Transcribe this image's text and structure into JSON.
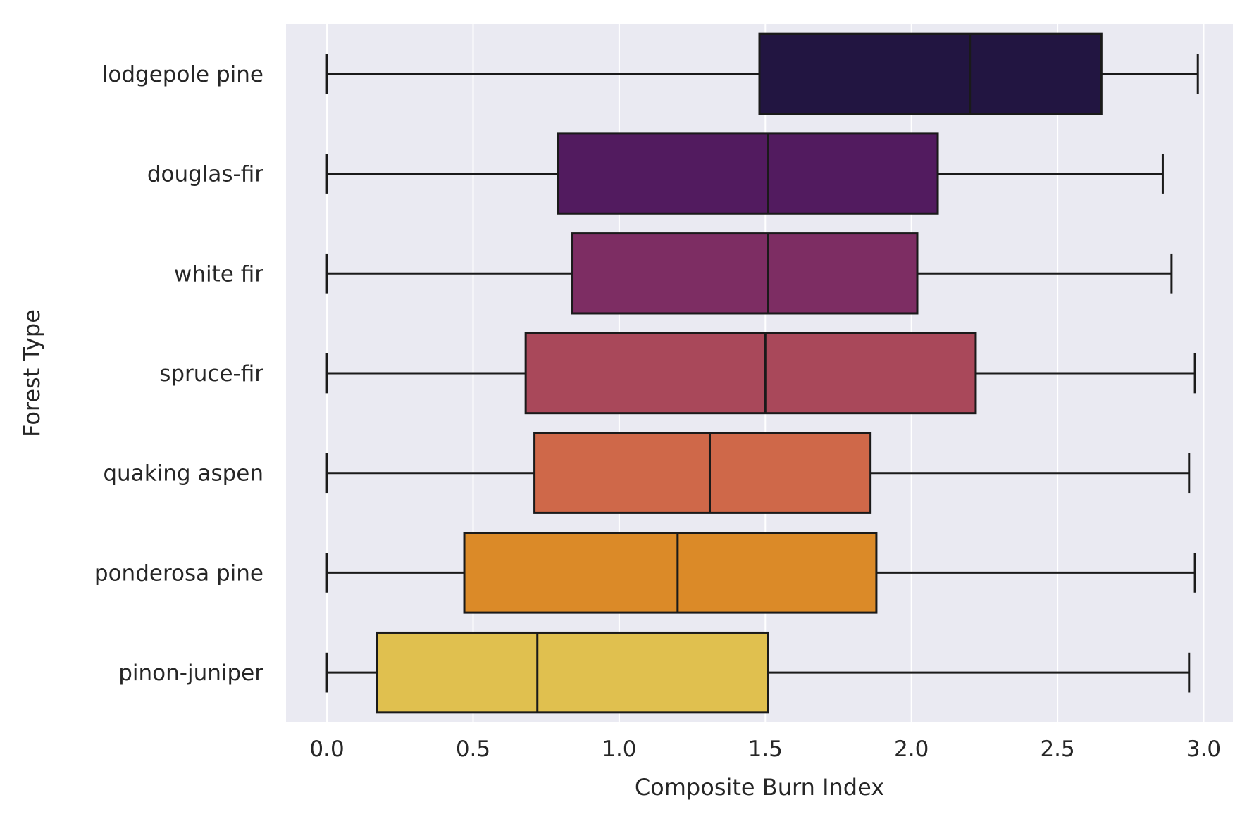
{
  "chart_data": {
    "type": "boxplot",
    "orientation": "horizontal",
    "xlabel": "Composite Burn Index",
    "ylabel": "Forest Type",
    "xlim": [
      -0.14,
      3.1
    ],
    "xticks": [
      0.0,
      0.5,
      1.0,
      1.5,
      2.0,
      2.5,
      3.0
    ],
    "xtick_labels": [
      "0.0",
      "0.5",
      "1.0",
      "1.5",
      "2.0",
      "2.5",
      "3.0"
    ],
    "grid": true,
    "background": "#eaeaf2",
    "categories": [
      "lodgepole pine",
      "douglas-fir",
      "white fir",
      "spruce-fir",
      "quaking aspen",
      "ponderosa pine",
      "pinon-juniper"
    ],
    "boxes": [
      {
        "category": "lodgepole pine",
        "whislo": 0.0,
        "q1": 1.48,
        "med": 2.2,
        "q3": 2.65,
        "whishi": 2.98,
        "color": "#221541"
      },
      {
        "category": "douglas-fir",
        "whislo": 0.0,
        "q1": 0.79,
        "med": 1.51,
        "q3": 2.09,
        "whishi": 2.86,
        "color": "#521b5f"
      },
      {
        "category": "white fir",
        "whislo": 0.0,
        "q1": 0.84,
        "med": 1.51,
        "q3": 2.02,
        "whishi": 2.89,
        "color": "#7d2d63"
      },
      {
        "category": "spruce-fir",
        "whislo": 0.0,
        "q1": 0.68,
        "med": 1.5,
        "q3": 2.22,
        "whishi": 2.97,
        "color": "#a9485a"
      },
      {
        "category": "quaking aspen",
        "whislo": 0.0,
        "q1": 0.71,
        "med": 1.31,
        "q3": 1.86,
        "whishi": 2.95,
        "color": "#cf6849"
      },
      {
        "category": "ponderosa pine",
        "whislo": 0.0,
        "q1": 0.47,
        "med": 1.2,
        "q3": 1.88,
        "whishi": 2.97,
        "color": "#db8a28"
      },
      {
        "category": "pinon-juniper",
        "whislo": 0.0,
        "q1": 0.17,
        "med": 0.72,
        "q3": 1.51,
        "whishi": 2.95,
        "color": "#e0c04f"
      }
    ]
  }
}
